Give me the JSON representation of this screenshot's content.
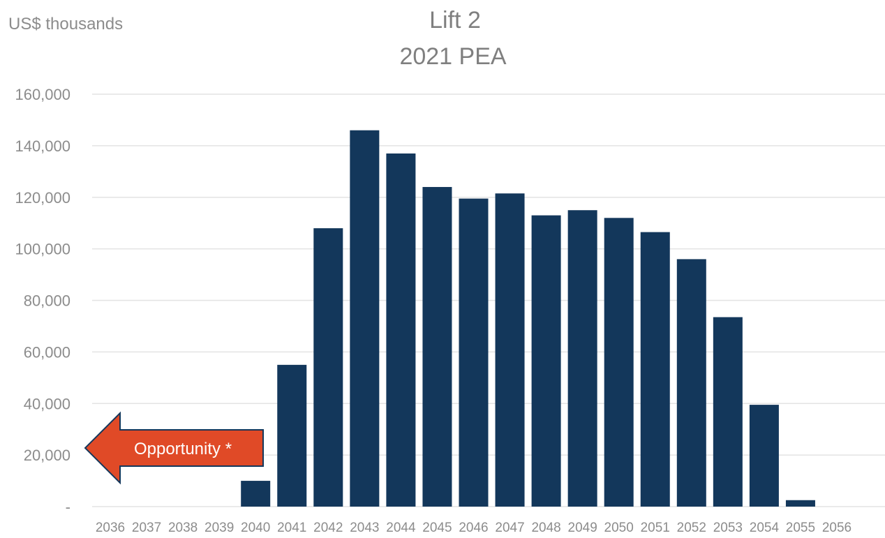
{
  "chart_data": {
    "type": "bar",
    "title": "Lift 2",
    "subtitle": "2021 PEA",
    "unit_label": "US$ thousands",
    "xlabel": "",
    "ylabel": "",
    "categories": [
      "2036",
      "2037",
      "2038",
      "2039",
      "2040",
      "2041",
      "2042",
      "2043",
      "2044",
      "2045",
      "2046",
      "2047",
      "2048",
      "2049",
      "2050",
      "2051",
      "2052",
      "2053",
      "2054",
      "2055",
      "2056"
    ],
    "values": [
      0,
      0,
      0,
      0,
      10000,
      55000,
      108000,
      146000,
      137000,
      124000,
      119500,
      121500,
      113000,
      115000,
      112000,
      106500,
      96000,
      73500,
      39500,
      2500,
      0
    ],
    "ylim": [
      0,
      160000
    ],
    "yticks": [
      0,
      20000,
      40000,
      60000,
      80000,
      100000,
      120000,
      140000,
      160000
    ],
    "ytick_labels": [
      "-",
      "20,000",
      "40,000",
      "60,000",
      "80,000",
      "100,000",
      "120,000",
      "140,000",
      "160,000"
    ],
    "grid": true,
    "legend": "none",
    "annotation": {
      "text": "Opportunity *",
      "shape": "left-arrow"
    },
    "colors": {
      "bar": "#13375b",
      "arrow_fill": "#e04a27",
      "arrow_border": "#13375b",
      "gridline": "#e3e3e3",
      "text": "#8c8c8c"
    }
  }
}
